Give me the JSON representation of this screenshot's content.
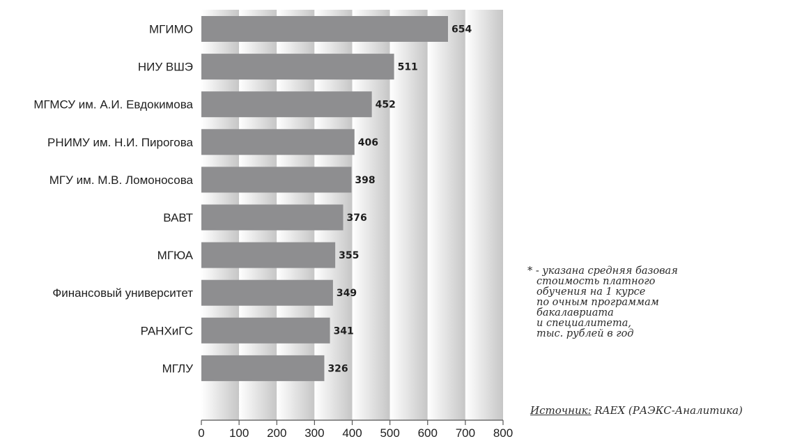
{
  "chart_data": {
    "type": "bar",
    "orientation": "horizontal",
    "categories": [
      "МГИМО",
      "НИУ ВШЭ",
      "МГМСУ им. А.И. Евдокимова",
      "РНИМУ им. Н.И. Пирогова",
      "МГУ им. М.В. Ломоносова",
      "ВАВТ",
      "МГЮА",
      "Финансовый университет",
      "РАНХиГС",
      "МГЛУ"
    ],
    "values": [
      654,
      511,
      452,
      406,
      398,
      376,
      355,
      349,
      341,
      326
    ],
    "xlim": [
      0,
      800
    ],
    "xticks": [
      0,
      100,
      200,
      300,
      400,
      500,
      600,
      700,
      800
    ],
    "grid": "vertical gradient bands",
    "colors": {
      "bar": "#8e8e90",
      "band_light": "#ffffff",
      "band_dark": "#c6c6c6",
      "axis": "#555555"
    }
  },
  "note": {
    "star": "* -",
    "lines": [
      "указана средняя базовая",
      "стоимость платного",
      "обучения на 1 курсе",
      "по очным программам",
      "бакалавриата",
      "и специалитета,",
      "тыс. рублей в год"
    ]
  },
  "source": {
    "label": "Источник:",
    "text": " RAEX (РАЭКС-Аналитика)"
  }
}
